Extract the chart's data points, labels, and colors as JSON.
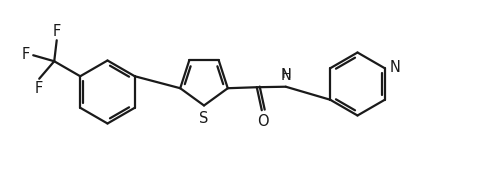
{
  "background_color": "#ffffff",
  "line_color": "#1a1a1a",
  "line_width": 1.6,
  "font_size": 10.5,
  "figsize": [
    5.0,
    1.83
  ],
  "dpi": 100,
  "xlim": [
    0,
    10
  ],
  "ylim": [
    0,
    3.66
  ]
}
